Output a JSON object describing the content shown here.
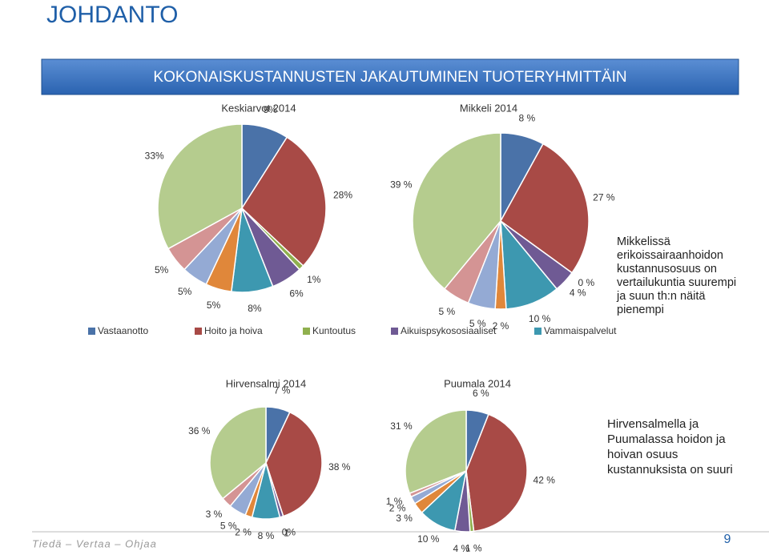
{
  "title": "JOHDANTO",
  "banner": "KOKONAISKUSTANNUSTEN JAKAUTUMINEN TUOTERYHMITTÄIN",
  "notes": [
    [
      "Mikkelissä",
      "erikoissairaanhoidon",
      "kustannusosuus on",
      "vertailukuntia suurempi",
      "ja suun th:n näitä",
      "pienempi"
    ],
    [
      "Hirvensalmella ja",
      "Puumalassa hoidon ja",
      "hoivan osuus",
      "kustannuksista on suuri"
    ]
  ],
  "footer": "Tiedä – Vertaa – Ohjaa",
  "page_number": 9,
  "chart_data": [
    {
      "type": "pie",
      "title": "Keskiarvot 2014",
      "categories": [
        "Vastaanotto",
        "Hoito ja hoiva",
        "Kuntoutus",
        "Aikuispsykososiaaliset",
        "Vammaispalvelut",
        null,
        null,
        null,
        null
      ],
      "values": [
        9,
        28,
        1,
        6,
        8,
        5,
        5,
        5,
        33
      ],
      "value_labels": [
        "9%",
        "28%",
        "1%",
        "6%",
        "8%",
        "5%",
        "5%",
        "5%",
        "33%"
      ],
      "colors": [
        "#4a72a8",
        "#a84a46",
        "#8fb04e",
        "#6f5a94",
        "#3d98b0",
        "#e0873a",
        "#94aad4",
        "#d49494",
        "#b5cc8e"
      ]
    },
    {
      "type": "pie",
      "title": "Mikkeli 2014",
      "categories": [
        null,
        null,
        null,
        null,
        null,
        null,
        null,
        null,
        null
      ],
      "values": [
        8,
        27,
        0,
        4,
        10,
        2,
        5,
        5,
        39
      ],
      "value_labels": [
        "8 %",
        "27 %",
        "0 %",
        "4 %",
        "10 %",
        "2 %",
        "5 %",
        "5 %",
        "39 %"
      ],
      "colors": [
        "#4a72a8",
        "#a84a46",
        "#8fb04e",
        "#6f5a94",
        "#3d98b0",
        "#e0873a",
        "#94aad4",
        "#d49494",
        "#b5cc8e"
      ]
    },
    {
      "type": "pie",
      "title": "Hirvensalmi 2014",
      "categories": [
        null,
        null,
        null,
        null,
        null,
        null,
        null,
        null,
        null
      ],
      "values": [
        7,
        38,
        0,
        1,
        8,
        2,
        5,
        3,
        36
      ],
      "value_labels": [
        "7 %",
        "38 %",
        "0%",
        "1",
        "8 %",
        "2 %",
        "5 %",
        "3 %",
        "36 %"
      ],
      "colors": [
        "#4a72a8",
        "#a84a46",
        "#8fb04e",
        "#6f5a94",
        "#3d98b0",
        "#e0873a",
        "#94aad4",
        "#d49494",
        "#b5cc8e"
      ]
    },
    {
      "type": "pie",
      "title": "Puumala 2014",
      "categories": [
        null,
        null,
        null,
        null,
        null,
        null,
        null,
        null,
        null
      ],
      "values": [
        6,
        42,
        1,
        4,
        10,
        3,
        2,
        1,
        31
      ],
      "value_labels": [
        "6 %",
        "42 %",
        "1 %",
        "4 %",
        "10 %",
        "3 %",
        "2 %",
        "1 %",
        "31 %"
      ],
      "colors": [
        "#4a72a8",
        "#a84a46",
        "#8fb04e",
        "#6f5a94",
        "#3d98b0",
        "#e0873a",
        "#94aad4",
        "#d49494",
        "#b5cc8e"
      ]
    }
  ]
}
